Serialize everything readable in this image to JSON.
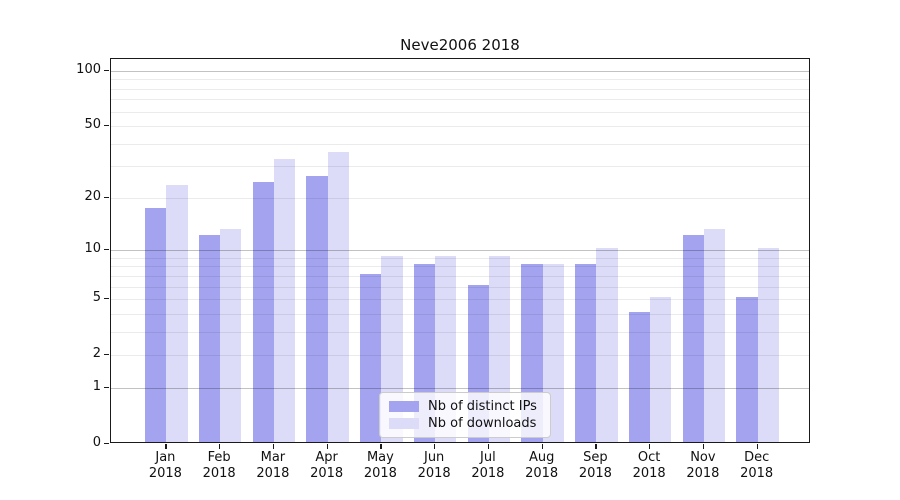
{
  "chart_data": {
    "type": "bar",
    "title": "Neve2006 2018",
    "year_label": "2018",
    "categories": [
      "Jan",
      "Feb",
      "Mar",
      "Apr",
      "May",
      "Jun",
      "Jul",
      "Aug",
      "Sep",
      "Oct",
      "Nov",
      "Dec"
    ],
    "series": [
      {
        "name": "Nb of distinct IPs",
        "color": "#a3a3f0",
        "values": [
          17,
          12,
          24,
          26,
          7,
          8,
          6,
          8,
          8,
          4,
          12,
          5
        ]
      },
      {
        "name": "Nb of downloads",
        "color": "#dcdcf8",
        "values": [
          23,
          13,
          32,
          35,
          9,
          9,
          9,
          8,
          10,
          5,
          13,
          10
        ]
      }
    ],
    "yscale": "log(1+x)",
    "ylim": [
      0,
      116
    ],
    "grid": "on",
    "legend_position": "lower center",
    "y_tick_labels": [
      "100",
      "50",
      "20",
      "10",
      "5",
      "2",
      "1",
      "0"
    ],
    "y_tick_values": [
      100,
      50,
      20,
      10,
      5,
      2,
      1,
      0
    ],
    "y_major_gridlines": [
      1,
      10,
      100
    ],
    "y_minor_gridlines": [
      2,
      3,
      4,
      5,
      6,
      7,
      8,
      9,
      20,
      30,
      40,
      50,
      60,
      70,
      80,
      90
    ],
    "colors": {
      "minor_grid": "rgba(0,0,0,0.08)",
      "major_grid": "rgba(0,0,0,0.24)",
      "spine": "#1a1a1a",
      "background": "#ffffff"
    }
  }
}
